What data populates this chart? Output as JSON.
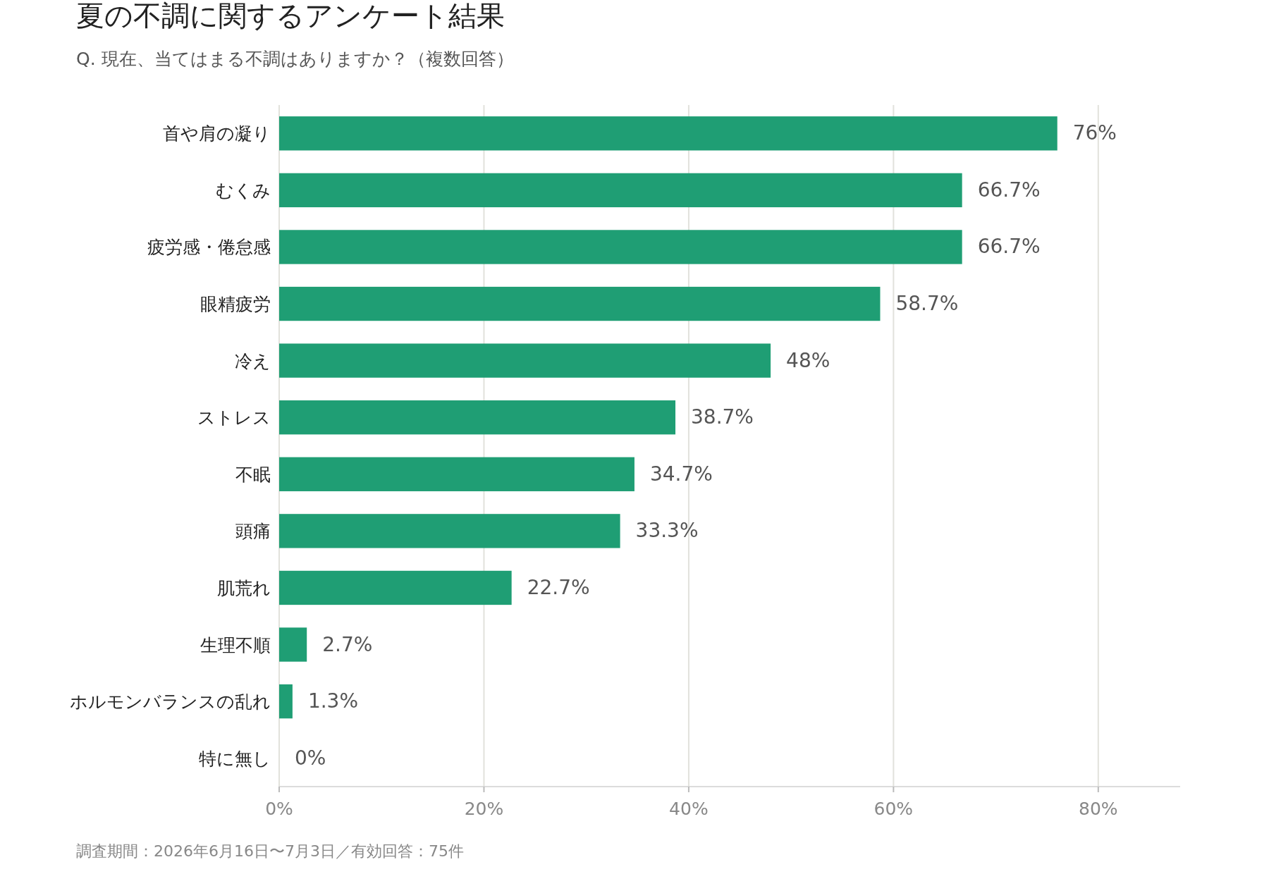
{
  "chart_data": {
    "type": "bar",
    "orientation": "horizontal",
    "title": "夏の不調に関するアンケート結果",
    "subtitle": "Q. 現在、当てはまる不調はありますか？（複数回答）",
    "categories": [
      "首や肩の凝り",
      "むくみ",
      "疲労感・倦怠感",
      "眼精疲労",
      "冷え",
      "ストレス",
      "不眠",
      "頭痛",
      "肌荒れ",
      "生理不順",
      "ホルモンバランスの乱れ",
      "特に無し"
    ],
    "values": [
      76,
      66.7,
      66.7,
      58.7,
      48,
      38.7,
      34.7,
      33.3,
      22.7,
      2.7,
      1.3,
      0
    ],
    "value_labels": [
      "76%",
      "66.7%",
      "66.7%",
      "58.7%",
      "48%",
      "38.7%",
      "34.7%",
      "33.3%",
      "22.7%",
      "2.7%",
      "1.3%",
      "0%"
    ],
    "color": "#1f9e74",
    "xlim": [
      0,
      88
    ],
    "xticks": [
      {
        "value": 0,
        "label": "0%"
      },
      {
        "value": 20,
        "label": "20%"
      },
      {
        "value": 40,
        "label": "40%"
      },
      {
        "value": 60,
        "label": "60%"
      },
      {
        "value": 80,
        "label": "80%"
      }
    ],
    "grid": "x",
    "annotations": [
      "調査期間：2026年6月16日〜7月3日／有効回答：75件"
    ]
  }
}
